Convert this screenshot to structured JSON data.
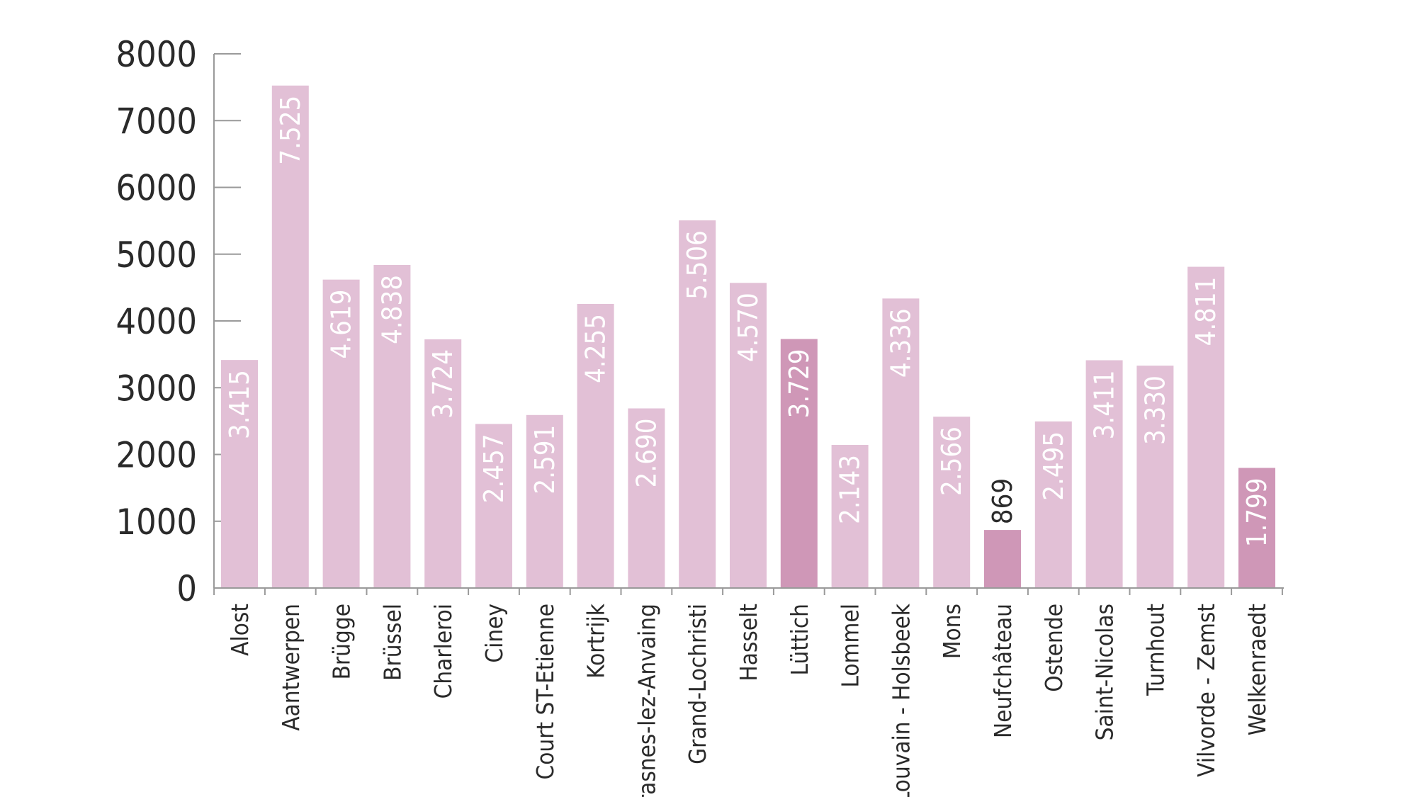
{
  "chart_data": {
    "type": "bar",
    "categories": [
      "Alost",
      "Aantwerpen",
      "Brügge",
      "Brüssel",
      "Charleroi",
      "Ciney",
      "Court ST-Etienne",
      "Kortrijk",
      "Frasnes-lez-Anvaing",
      "Grand-Lochristi",
      "Hasselt",
      "Lüttich",
      "Lommel",
      "Louvain - Holsbeek",
      "Mons",
      "Neufchâteau",
      "Ostende",
      "Saint-Nicolas",
      "Turnhout",
      "Vilvorde - Zemst",
      "Welkenraedt"
    ],
    "values": [
      3415,
      7525,
      4619,
      4838,
      3724,
      2457,
      2591,
      4255,
      2690,
      5506,
      4570,
      3729,
      2143,
      4336,
      2566,
      869,
      2495,
      3411,
      3330,
      4811,
      1799
    ],
    "value_labels": [
      "3.415",
      "7.525",
      "4.619",
      "4.838",
      "3.724",
      "2.457",
      "2.591",
      "4.255",
      "2.690",
      "5.506",
      "4.570",
      "3.729",
      "2.143",
      "4.336",
      "2.566",
      "869",
      "2.495",
      "3.411",
      "3.330",
      "4.811",
      "1.799"
    ],
    "highlighted": [
      "Lüttich",
      "Neufchâteau",
      "Welkenraedt"
    ],
    "yticks": [
      0,
      1000,
      2000,
      3000,
      4000,
      5000,
      6000,
      7000,
      8000
    ],
    "ylim": [
      0,
      8000
    ],
    "title": "",
    "xlabel": "",
    "ylabel": "",
    "grid": false,
    "colors": {
      "bar": "#e2c0d6",
      "bar_highlight": "#cf97b7",
      "axis": "#9a9a9a",
      "text": "#2a2a2a",
      "label_inside": "#ffffff"
    }
  }
}
